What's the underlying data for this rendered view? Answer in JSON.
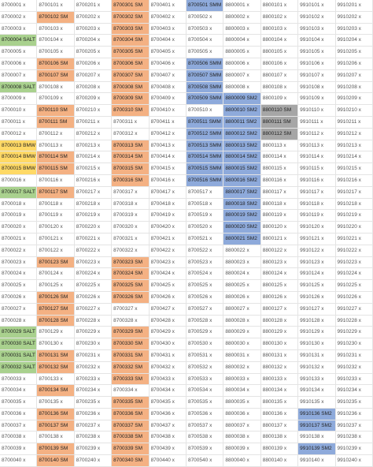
{
  "sheet": {
    "highlights": [
      {
        "col": 0,
        "color": "#a9d18e",
        "rows": [
          3,
          7,
          16,
          28,
          29,
          30,
          31
        ]
      },
      {
        "col": 0,
        "color": "#ffd966",
        "rows": [
          12,
          13,
          14
        ]
      },
      {
        "col": 1,
        "color": "#f4b183",
        "rows": [
          1,
          5,
          6,
          9,
          10,
          13,
          14,
          16,
          22,
          25,
          26,
          27,
          30,
          31,
          33,
          35,
          36,
          38,
          39
        ]
      },
      {
        "col": 3,
        "color": "#f4b183",
        "rows": [
          0,
          1,
          2,
          3,
          4,
          5,
          6,
          7,
          8,
          9,
          12,
          13,
          14,
          15,
          22,
          23,
          24,
          25,
          28,
          29,
          30,
          31,
          32,
          34,
          35,
          36,
          37,
          38,
          39
        ]
      },
      {
        "col": 5,
        "color": "#8eaadb",
        "rows": [
          0,
          5,
          6,
          7,
          8,
          10,
          11,
          12,
          13,
          14,
          15
        ]
      },
      {
        "col": 6,
        "color": "#8eaadb",
        "rows": [
          8,
          9,
          10,
          11,
          12,
          13,
          14,
          15,
          16,
          17,
          18,
          19,
          20
        ]
      },
      {
        "col": 7,
        "color": "#a6a6a6",
        "rows": [
          9,
          10,
          11
        ]
      },
      {
        "col": 8,
        "color": "#8eaadb",
        "rows": [
          35,
          36,
          38
        ]
      }
    ],
    "rows": [
      [
        "8700001 x",
        "8700101 x",
        "8700201 x",
        "8700301 SM",
        "8700401 x",
        "8700501 SMM",
        "8800001 x",
        "8800101 x",
        "9910101 x",
        "9910201 x"
      ],
      [
        "8700002 x",
        "8700102 SM",
        "8700202 x",
        "8700302 SM",
        "8700402 x",
        "8700502 x",
        "8800002 x",
        "8800102 x",
        "9910102 x",
        "9910202 x"
      ],
      [
        "8700003 x",
        "8700103 x",
        "8700203 x",
        "8700303 SM",
        "8700403 x",
        "8700503 x",
        "8800003 x",
        "8800103 x",
        "9910103 x",
        "9910203 x"
      ],
      [
        "8700004 SALT",
        "8700104 x",
        "8700204 x",
        "8700304 SM",
        "8700404 x",
        "8700504 x",
        "8800004 x",
        "8800104 x",
        "9910104 x",
        "9910204 x"
      ],
      [
        "8700005 x",
        "8700105 x",
        "8700205 x",
        "8700305 SM",
        "8700405 x",
        "8700505 x",
        "8800005 x",
        "8800105 x",
        "9910105 x",
        "9910205 x"
      ],
      [
        "8700006 x",
        "8700106 SM",
        "8700206 x",
        "8700306 SM",
        "8700406 x",
        "8700506 SMM",
        "8800006 x",
        "8800106 x",
        "9910106 x",
        "9910206 x"
      ],
      [
        "8700007 x",
        "8700107 SM",
        "8700207 x",
        "8700307 SM",
        "8700407 x",
        "8700507 SMM",
        "8800007 x",
        "8800107 x",
        "9910107 x",
        "9910207 x"
      ],
      [
        "8700008 SALT",
        "8700108 x",
        "8700208 x",
        "8700308 SM",
        "8700408 x",
        "8700508 SMM",
        "8800008 x",
        "8800108 x",
        "9910108 x",
        "9910208 x"
      ],
      [
        "8700009 x",
        "8700109 x",
        "8700209 x",
        "8700309 SM",
        "8700409 x",
        "8700509 SMM",
        "8800009 SM2",
        "8800109 x",
        "9910109 x",
        "9910209 x"
      ],
      [
        "8700010 x",
        "8700110 SM",
        "8700210 x",
        "8700310 SM",
        "8700410 x",
        "8700510 x",
        "8800010 SM2",
        "8800110 SM",
        "9910110 x",
        "9910210 x"
      ],
      [
        "8700011 x",
        "8700111 SM",
        "8700211 x",
        "8700311 x",
        "8700411 x",
        "8700511 SMM",
        "8800011 SM2",
        "8800111 SM",
        "9910111 x",
        "9910211 x"
      ],
      [
        "8700012 x",
        "8700112 x",
        "8700212 x",
        "8700312 x",
        "8700412 x",
        "8700512 SMM",
        "8800012 SM2",
        "8800112 SM",
        "9910112 x",
        "9910212 x"
      ],
      [
        "8700013 BMW",
        "8700113 x",
        "8700213 x",
        "8700313 SM",
        "8700413 x",
        "8700513 SMM",
        "8800013 SM2",
        "8800113 x",
        "9910113 x",
        "9910213 x"
      ],
      [
        "8700014 BMW",
        "8700114 SM",
        "8700214 x",
        "8700314 SM",
        "8700414 x",
        "8700514 SMM",
        "8800014 SM2",
        "8800114 x",
        "9910114 x",
        "9910214 x"
      ],
      [
        "8700015 BMW",
        "8700115 SM",
        "8700215 x",
        "8700315 SM",
        "8700415 x",
        "8700515 SMM",
        "8800015 SM2",
        "8800115 x",
        "9910115 x",
        "9910215 x"
      ],
      [
        "8700016 x",
        "8700116 x",
        "8700216 x",
        "8700316 SM",
        "8700416 x",
        "8700516 SMM",
        "8800016 SM2",
        "8800116 x",
        "9910116 x",
        "9910216 x"
      ],
      [
        "8700017 SALT",
        "8700117 SM",
        "8700217 x",
        "8700317 x",
        "8700417 x",
        "8700517 x",
        "8800017 SM2",
        "8800117 x",
        "9910117 x",
        "9910217 x"
      ],
      [
        "8700018 x",
        "8700118 x",
        "8700218 x",
        "8700318 x",
        "8700418 x",
        "8700518 x",
        "8800018 SM2",
        "8800118 x",
        "9910118 x",
        "9910218 x"
      ],
      [
        "8700019 x",
        "8700119 x",
        "8700219 x",
        "8700319 x",
        "8700419 x",
        "8700519 x",
        "8800019 SM2",
        "8800119 x",
        "9910119 x",
        "9910219 x"
      ],
      [
        "8700020 x",
        "8700120 x",
        "8700220 x",
        "8700320 x",
        "8700420 x",
        "8700520 x",
        "8800020 SM2",
        "8800120 x",
        "9910120 x",
        "9910220 x"
      ],
      [
        "8700021 x",
        "8700121 x",
        "8700221 x",
        "8700321 x",
        "8700421 x",
        "8700521 x",
        "8800021 SM2",
        "8800121 x",
        "9910121 x",
        "9910221 x"
      ],
      [
        "8700022 x",
        "8700122 x",
        "8700222 x",
        "8700322 x",
        "8700422 x",
        "8700522 x",
        "8800022 x",
        "8800122 x",
        "9910122 x",
        "9910222 x"
      ],
      [
        "8700023 x",
        "8700123 SM",
        "8700223 x",
        "8700323 SM",
        "8700423 x",
        "8700523 x",
        "8800023 x",
        "8800123 x",
        "9910123 x",
        "9910223 x"
      ],
      [
        "8700024 x",
        "8700124 x",
        "8700224 x",
        "8700324 SM",
        "8700424 x",
        "8700524 x",
        "8800024 x",
        "8800124 x",
        "9910124 x",
        "9910224 x"
      ],
      [
        "8700025 x",
        "8700125 x",
        "8700225 x",
        "8700325 SM",
        "8700425 x",
        "8700525 x",
        "8800025 x",
        "8800125 x",
        "9910125 x",
        "9910225 x"
      ],
      [
        "8700026 x",
        "8700126 SM",
        "8700226 x",
        "8700326 SM",
        "8700426 x",
        "8700526 x",
        "8800026 x",
        "8800126 x",
        "9910126 x",
        "9910226 x"
      ],
      [
        "8700027 x",
        "8700127 SM",
        "8700227 x",
        "8700327 x",
        "8700427 x",
        "8700527 x",
        "8800027 x",
        "8800127 x",
        "9910127 x",
        "9910227 x"
      ],
      [
        "8700028 x",
        "8700128 SM",
        "8700228 x",
        "8700328 x",
        "8700428 x",
        "8700528 x",
        "8800028 x",
        "8800128 x",
        "9910128 x",
        "9910228 x"
      ],
      [
        "8700029 SALT",
        "8700129 x",
        "8700229 x",
        "8700329 SM",
        "8700429 x",
        "8700529 x",
        "8800029 x",
        "8800129 x",
        "9910129 x",
        "9910229 x"
      ],
      [
        "8700030 SALT",
        "8700130 x",
        "8700230 x",
        "8700330 SM",
        "8700430 x",
        "8700530 x",
        "8800030 x",
        "8800130 x",
        "9910130 x",
        "9910230 x"
      ],
      [
        "8700031 SALT",
        "8700131 SM",
        "8700231 x",
        "8700331 SM",
        "8700431 x",
        "8700531 x",
        "8800031 x",
        "8800131 x",
        "9910131 x",
        "9910231 x"
      ],
      [
        "8700032 SALT",
        "8700132 SM",
        "8700232 x",
        "8700332 SM",
        "8700432 x",
        "8700532 x",
        "8800032 x",
        "8800132 x",
        "9910132 x",
        "9910232 x"
      ],
      [
        "8700033 x",
        "8700133 x",
        "8700233 x",
        "8700333 SM",
        "8700433 x",
        "8700533 x",
        "8800033 x",
        "8800133 x",
        "9910133 x",
        "9910233 x"
      ],
      [
        "8700034 x",
        "8700134 SM",
        "8700234 x",
        "8700334 x",
        "8700434 x",
        "8700534 x",
        "8800034 x",
        "8800134 x",
        "9910134 x",
        "9910234 x"
      ],
      [
        "8700035 x",
        "8700135 x",
        "8700235 x",
        "8700335 SM",
        "8700435 x",
        "8700535 x",
        "8800035 x",
        "8800135 x",
        "9910135 x",
        "9910235 x"
      ],
      [
        "8700036 x",
        "8700136 SM",
        "8700236 x",
        "8700336 SM",
        "8700436 x",
        "8700536 x",
        "8800036 x",
        "8800136 x",
        "9910136 SM2",
        "9910236 x"
      ],
      [
        "8700037 x",
        "8700137 SM",
        "8700237 x",
        "8700337 SM",
        "8700437 x",
        "8700537 x",
        "8800037 x",
        "8800137 x",
        "9910137 SM2",
        "9910237 x"
      ],
      [
        "8700038 x",
        "8700138 x",
        "8700238 x",
        "8700338 SM",
        "8700438 x",
        "8700538 x",
        "8800038 x",
        "8800138 x",
        "9910138 x",
        "9910238 x"
      ],
      [
        "8700039 x",
        "8700139 SM",
        "8700239 x",
        "8700339 SM",
        "8700439 x",
        "8700539 x",
        "8800039 x",
        "8800139 x",
        "9910139 SM2",
        "9910239 x"
      ],
      [
        "8700040 x",
        "8700140 SM",
        "8700240 x",
        "8700340 SM",
        "8700440 x",
        "8700540 x",
        "8800040 x",
        "8800140 x",
        "9910140 x",
        "9910240 x"
      ]
    ]
  }
}
